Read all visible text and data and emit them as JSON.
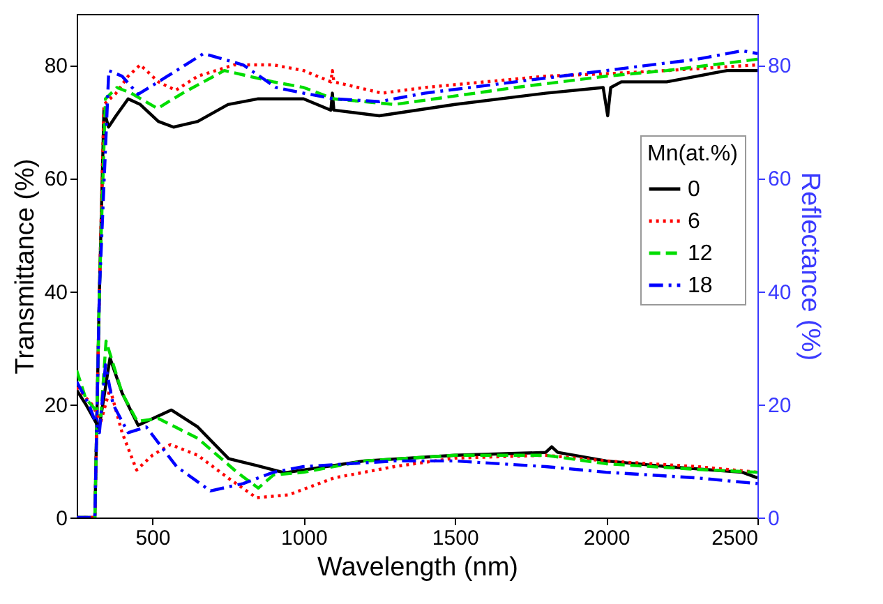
{
  "chart_data": {
    "type": "line",
    "xlabel": "Wavelength (nm)",
    "ylabel": "Transmittance (%)",
    "y2label": "Reflectance (%)",
    "legend_title": "Mn(at.%)",
    "legend": "right",
    "grid": false,
    "xlim": [
      250,
      2500
    ],
    "xticks": [
      500,
      1000,
      1500,
      2000,
      2500
    ],
    "ylim": [
      0,
      89
    ],
    "yticks": [
      0,
      20,
      40,
      60,
      80
    ],
    "y2lim": [
      0,
      89
    ],
    "y2ticks": [
      0,
      20,
      40,
      60,
      80
    ],
    "series": [
      {
        "name": "0",
        "color": "#000000",
        "line_style": "solid",
        "x": [
          250,
          300,
          310,
          325,
          340,
          355,
          380,
          420,
          460,
          520,
          570,
          650,
          750,
          850,
          1000,
          1090,
          1095,
          1100,
          1250,
          1500,
          1800,
          1990,
          2005,
          2015,
          2050,
          2200,
          2400,
          2500
        ],
        "values": [
          0,
          0,
          0,
          40,
          72,
          69,
          71,
          74,
          73,
          70,
          69,
          70,
          73,
          74,
          74,
          72,
          75,
          72,
          71,
          73,
          75,
          76,
          71,
          76,
          77,
          77,
          79,
          79
        ]
      },
      {
        "name": "6",
        "color": "#ff0000",
        "line_style": "dotted",
        "x": [
          250,
          300,
          310,
          325,
          340,
          380,
          420,
          460,
          520,
          577,
          650,
          770,
          900,
          1000,
          1090,
          1095,
          1100,
          1259,
          1400,
          1600,
          1800,
          2028,
          2200,
          2500
        ],
        "values": [
          0,
          0,
          0,
          40,
          73,
          75,
          78,
          80,
          77,
          75.5,
          78,
          80,
          80,
          79,
          77,
          79,
          77,
          75,
          76,
          77,
          78,
          78.5,
          79,
          80
        ]
      },
      {
        "name": "12",
        "color": "#00dd00",
        "line_style": "dashed",
        "x": [
          250,
          300,
          310,
          325,
          345,
          383,
          430,
          517,
          600,
          738,
          900,
          1000,
          1100,
          1300,
          1500,
          1700,
          2000,
          2200,
          2500
        ],
        "values": [
          0,
          0,
          0,
          40,
          74,
          76,
          75,
          72.3,
          75,
          79,
          77,
          76,
          74,
          73,
          74.5,
          76,
          78,
          79,
          81
        ]
      },
      {
        "name": "18",
        "color": "#0000ff",
        "line_style": "dashdot",
        "x": [
          250,
          300,
          310,
          325,
          356,
          400,
          453,
          550,
          669,
          800,
          909,
          1000,
          1100,
          1250,
          1400,
          1700,
          2000,
          2300,
          2450,
          2500
        ],
        "values": [
          0,
          0,
          0,
          40,
          79,
          78,
          74.8,
          78,
          82,
          80,
          76,
          75,
          74,
          73.5,
          75,
          77,
          79,
          81,
          82.5,
          82
        ]
      },
      {
        "color": "#000000",
        "line_style": "solid",
        "axis": "y2",
        "x": [
          250,
          280,
          324,
          360,
          400,
          453,
          563,
          650,
          752,
          844,
          937,
          1200,
          1500,
          1800,
          1820,
          1840,
          2000,
          2200,
          2450,
          2500
        ],
        "values": [
          22.5,
          20,
          15.8,
          28.2,
          22,
          16.3,
          19,
          16,
          10.4,
          9.2,
          7.9,
          10,
          11,
          11.5,
          12.5,
          11.5,
          10,
          9,
          8,
          7
        ]
      },
      {
        "color": "#ff0000",
        "line_style": "dotted",
        "axis": "y2",
        "x": [
          250,
          300,
          330,
          360,
          400,
          448,
          500,
          560,
          650,
          750,
          844,
          950,
          1100,
          1300,
          1500,
          1800,
          2000,
          2300,
          2500
        ],
        "values": [
          23,
          20,
          17,
          22.8,
          15,
          8.4,
          11,
          12.9,
          11,
          7,
          3.5,
          4,
          7,
          9,
          10.5,
          11,
          10,
          9,
          8
        ]
      },
      {
        "color": "#00dd00",
        "line_style": "dashed",
        "axis": "y2",
        "x": [
          250,
          280,
          330,
          347,
          400,
          450,
          520,
          650,
          780,
          850,
          900,
          1000,
          1200,
          1500,
          1800,
          2000,
          2300,
          2500
        ],
        "values": [
          26,
          21,
          18,
          31.2,
          22,
          17,
          17.5,
          14,
          8,
          5.2,
          7.5,
          8,
          10,
          11,
          11,
          9.5,
          8.5,
          8
        ]
      },
      {
        "color": "#0000ff",
        "line_style": "dashdot",
        "axis": "y2",
        "x": [
          250,
          290,
          325,
          345,
          370,
          420,
          480,
          580,
          692,
          800,
          900,
          1000,
          1300,
          1500,
          1800,
          2000,
          2300,
          2500
        ],
        "values": [
          24,
          20,
          15,
          27,
          20,
          15,
          16,
          9,
          4.7,
          6,
          8,
          9,
          10,
          10,
          9,
          8,
          7,
          6
        ]
      }
    ]
  }
}
